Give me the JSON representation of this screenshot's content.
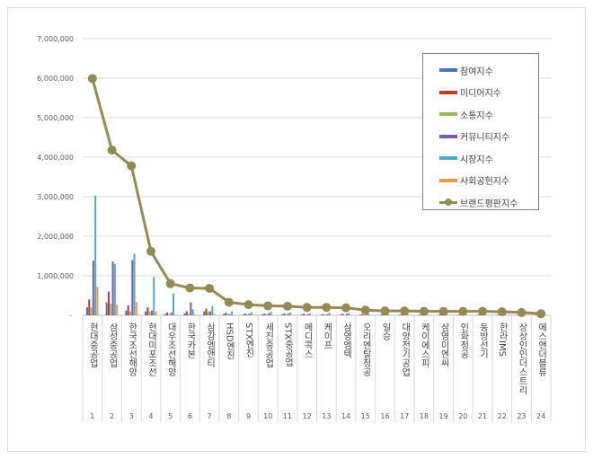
{
  "chart_data": {
    "type": "bar+line",
    "categories": [
      "현대중공업",
      "삼성중공업",
      "한국조선해양",
      "현대미포조선",
      "대우조선해양",
      "한국카본",
      "삼강엠앤티",
      "HSD엔진",
      "STX엔진",
      "세진중공업",
      "STX중공업",
      "메디콕스",
      "케이프",
      "삼영엠텍",
      "오리엔탈정공",
      "일승",
      "대양전기공업",
      "케이에스피",
      "삼영이엔씨",
      "인화정공",
      "동방선기",
      "한라IMS",
      "상상인인더스트리",
      "에스앤더블류"
    ],
    "ranks": [
      "1",
      "2",
      "3",
      "4",
      "5",
      "6",
      "7",
      "8",
      "9",
      "10",
      "11",
      "12",
      "13",
      "14",
      "15",
      "16",
      "17",
      "18",
      "19",
      "20",
      "21",
      "22",
      "23",
      "24"
    ],
    "yticks": [
      "-",
      "1,000,000",
      "2,000,000",
      "3,000,000",
      "4,000,000",
      "5,000,000",
      "6,000,000",
      "7,000,000"
    ],
    "ylim": [
      0,
      7000000
    ],
    "grid": true,
    "legend_position": "top-right",
    "series": [
      {
        "name": "참여지수",
        "color": "#4472c4",
        "type": "bar",
        "values": [
          200000,
          330000,
          120000,
          100000,
          30000,
          50000,
          100000,
          30000,
          20000,
          30000,
          20000,
          20000,
          15000,
          20000,
          15000,
          10000,
          10000,
          10000,
          10000,
          10000,
          10000,
          10000,
          8000,
          5000
        ]
      },
      {
        "name": "미디어지수",
        "color": "#c0392b",
        "type": "bar",
        "values": [
          400000,
          600000,
          250000,
          200000,
          70000,
          100000,
          170000,
          60000,
          40000,
          40000,
          50000,
          40000,
          30000,
          40000,
          30000,
          20000,
          20000,
          20000,
          20000,
          20000,
          20000,
          20000,
          15000,
          10000
        ]
      },
      {
        "name": "소통지수",
        "color": "#9bbb59",
        "type": "bar",
        "values": [
          200000,
          300000,
          100000,
          100000,
          20000,
          40000,
          100000,
          40000,
          20000,
          30000,
          20000,
          20000,
          15000,
          15000,
          10000,
          10000,
          10000,
          10000,
          10000,
          10000,
          10000,
          10000,
          8000,
          5000
        ]
      },
      {
        "name": "커뮤니티지수",
        "color": "#7e5ca8",
        "type": "bar",
        "values": [
          1380000,
          1360000,
          1400000,
          120000,
          70000,
          330000,
          100000,
          30000,
          40000,
          50000,
          40000,
          30000,
          30000,
          40000,
          20000,
          20000,
          20000,
          20000,
          20000,
          20000,
          20000,
          20000,
          15000,
          10000
        ]
      },
      {
        "name": "시장지수",
        "color": "#4bacc6",
        "type": "bar",
        "values": [
          3030000,
          1300000,
          1560000,
          970000,
          550000,
          150000,
          230000,
          100000,
          80000,
          90000,
          70000,
          50000,
          60000,
          60000,
          40000,
          40000,
          40000,
          30000,
          30000,
          30000,
          30000,
          30000,
          25000,
          15000
        ]
      },
      {
        "name": "사회공헌지수",
        "color": "#f79646",
        "type": "bar",
        "values": [
          720000,
          270000,
          330000,
          100000,
          20000,
          20000,
          30000,
          10000,
          10000,
          10000,
          10000,
          10000,
          10000,
          10000,
          5000,
          5000,
          5000,
          5000,
          5000,
          5000,
          5000,
          5000,
          5000,
          3000
        ]
      },
      {
        "name": "브랜드평판지수",
        "color": "#948a54",
        "type": "line",
        "values": [
          5990000,
          4180000,
          3780000,
          1620000,
          800000,
          690000,
          680000,
          330000,
          270000,
          240000,
          230000,
          200000,
          200000,
          190000,
          130000,
          110000,
          110000,
          100000,
          100000,
          100000,
          100000,
          90000,
          70000,
          40000
        ]
      }
    ]
  }
}
